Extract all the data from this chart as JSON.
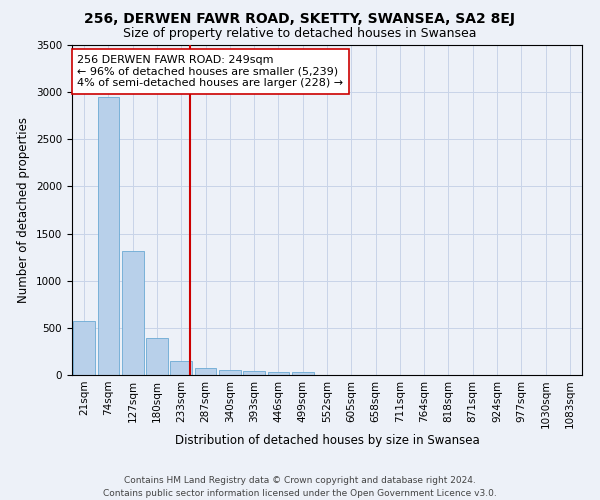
{
  "title1": "256, DERWEN FAWR ROAD, SKETTY, SWANSEA, SA2 8EJ",
  "title2": "Size of property relative to detached houses in Swansea",
  "xlabel": "Distribution of detached houses by size in Swansea",
  "ylabel": "Number of detached properties",
  "bin_labels": [
    "21sqm",
    "74sqm",
    "127sqm",
    "180sqm",
    "233sqm",
    "287sqm",
    "340sqm",
    "393sqm",
    "446sqm",
    "499sqm",
    "552sqm",
    "605sqm",
    "658sqm",
    "711sqm",
    "764sqm",
    "818sqm",
    "871sqm",
    "924sqm",
    "977sqm",
    "1030sqm",
    "1083sqm"
  ],
  "bar_heights": [
    570,
    2950,
    1310,
    390,
    145,
    75,
    55,
    40,
    35,
    30,
    0,
    0,
    0,
    0,
    0,
    0,
    0,
    0,
    0,
    0,
    0
  ],
  "bar_color": "#b8d0ea",
  "bar_edge_color": "#6aaad4",
  "grid_color": "#c8d4e8",
  "background_color": "#edf1f8",
  "vline_x_index": 4.35,
  "vline_color": "#cc0000",
  "annotation_line1": "256 DERWEN FAWR ROAD: 249sqm",
  "annotation_line2": "← 96% of detached houses are smaller (5,239)",
  "annotation_line3": "4% of semi-detached houses are larger (228) →",
  "annotation_box_color": "white",
  "annotation_box_edge_color": "#cc0000",
  "ylim": [
    0,
    3500
  ],
  "yticks": [
    0,
    500,
    1000,
    1500,
    2000,
    2500,
    3000,
    3500
  ],
  "footer": "Contains HM Land Registry data © Crown copyright and database right 2024.\nContains public sector information licensed under the Open Government Licence v3.0.",
  "title1_fontsize": 10,
  "title2_fontsize": 9,
  "xlabel_fontsize": 8.5,
  "ylabel_fontsize": 8.5,
  "tick_fontsize": 7.5,
  "annotation_fontsize": 8,
  "footer_fontsize": 6.5
}
